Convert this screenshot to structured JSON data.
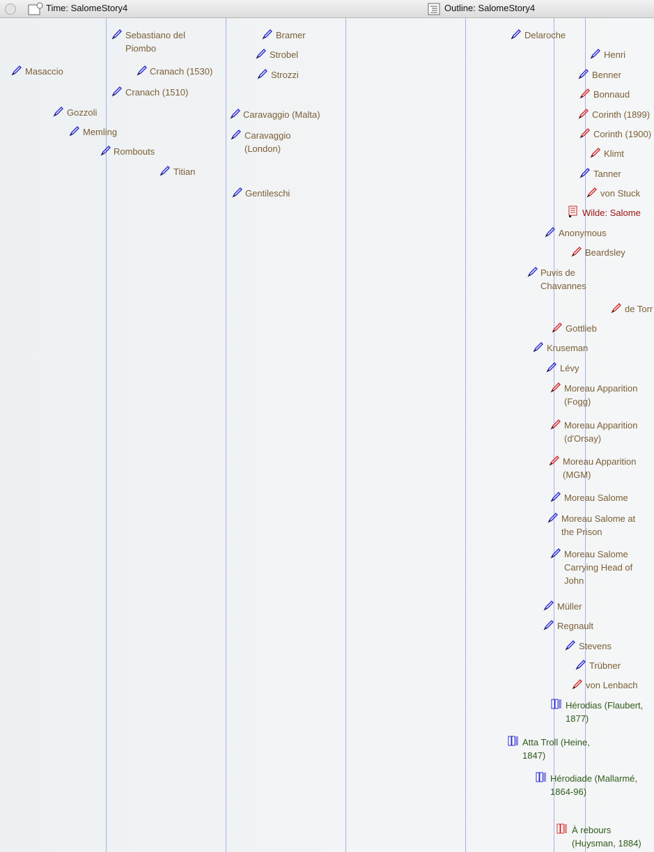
{
  "tabs": [
    "Time: SalomeStory4",
    "Outline: SalomeStory4"
  ],
  "notes": [
    "Sebastiano del Piombo",
    "Masaccio",
    "Cranach (1530)",
    "Cranach (1510)",
    "Gozzoli",
    "Memling",
    "Rombouts",
    "Titian",
    "Bramer",
    "Strobel",
    "Strozzi",
    "Caravaggio (Malta)",
    "Caravaggio (London)",
    "Gentileschi",
    "Delaroche",
    "Henri",
    "Benner",
    "Bonnaud",
    "Corinth (1899)",
    "Corinth (1900)",
    "Klimt",
    "Tanner",
    "von Stuck",
    "Wilde: Salome",
    "Anonymous",
    "Beardsley",
    "Puvis de Chavannes",
    "de Torr",
    "Gottlieb",
    "Kruseman",
    "Lévy",
    "Moreau Apparition (Fogg)",
    "Moreau Apparition (d'Orsay)",
    "Moreau Apparition (MGM)",
    "Moreau Salome",
    "Moreau Salome at the Prison",
    "Moreau Salome Carrying Head of John",
    "Müller",
    "Regnault",
    "Stevens",
    "Trübner",
    "von Lenbach",
    "Hérodias (Flaubert, 1877)",
    "Atta Troll (Heine, 1847)",
    "Hérodiade (Mallarmé, 1864-96)",
    "À rebours (Huysman, 1884)"
  ]
}
